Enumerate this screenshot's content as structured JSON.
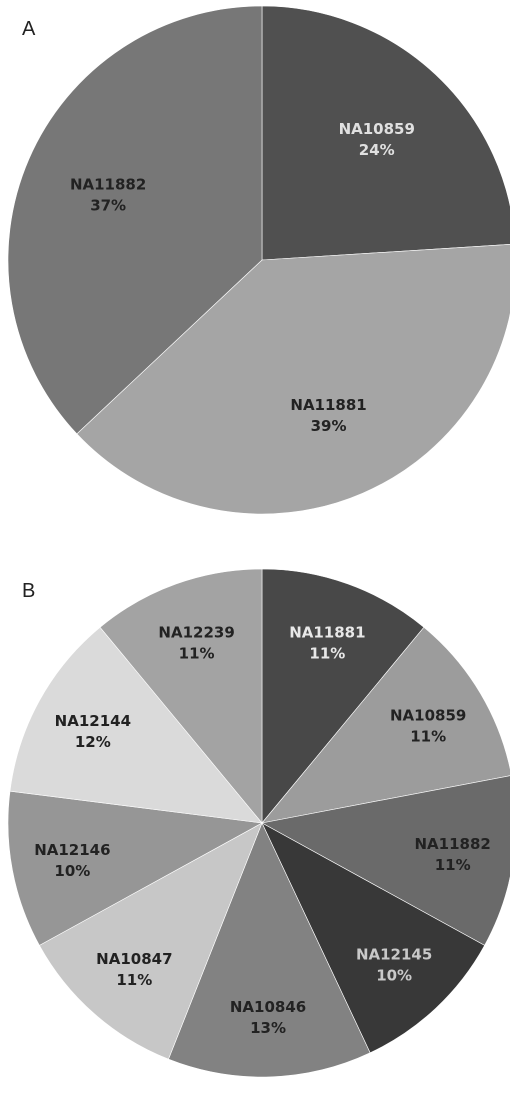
{
  "chart_data": [
    {
      "panel": "A",
      "type": "pie",
      "title": "",
      "colors": [
        "#505050",
        "#a5a5a5",
        "#777777"
      ],
      "label_colors": [
        "#e0e0e0",
        "#222222",
        "#222222"
      ],
      "slices": [
        {
          "label": "NA10859",
          "pct_label": "24%",
          "value": 24
        },
        {
          "label": "NA11881",
          "pct_label": "39%",
          "value": 39
        },
        {
          "label": "NA11882",
          "pct_label": "37%",
          "value": 37
        }
      ]
    },
    {
      "panel": "B",
      "type": "pie",
      "title": "",
      "colors": [
        "#484848",
        "#9c9c9c",
        "#6a6a6a",
        "#383838",
        "#828282",
        "#c7c7c7",
        "#969696",
        "#dadada",
        "#a3a3a3"
      ],
      "label_colors": [
        "#e8e8e8",
        "#222222",
        "#222222",
        "#c8c8c8",
        "#222222",
        "#222222",
        "#222222",
        "#222222",
        "#222222"
      ],
      "slices": [
        {
          "label": "NA11881",
          "pct_label": "11%",
          "value": 11
        },
        {
          "label": "NA10859",
          "pct_label": "11%",
          "value": 11
        },
        {
          "label": "NA11882",
          "pct_label": "11%",
          "value": 11
        },
        {
          "label": "NA12145",
          "pct_label": "10%",
          "value": 10
        },
        {
          "label": "NA10846",
          "pct_label": "13%",
          "value": 13
        },
        {
          "label": "NA10847",
          "pct_label": "11%",
          "value": 11
        },
        {
          "label": "NA12146",
          "pct_label": "10%",
          "value": 10
        },
        {
          "label": "NA12144",
          "pct_label": "12%",
          "value": 12
        },
        {
          "label": "NA12239",
          "pct_label": "11%",
          "value": 11
        }
      ]
    }
  ]
}
